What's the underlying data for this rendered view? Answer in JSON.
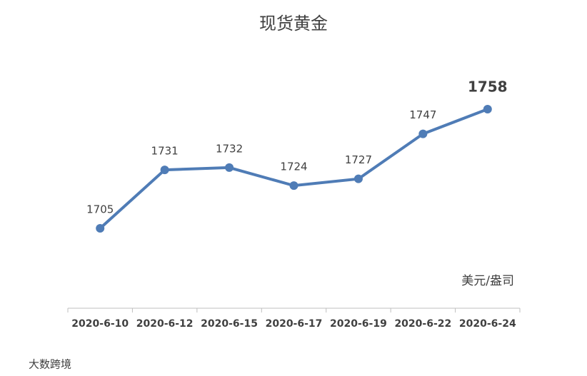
{
  "chart_data": {
    "type": "line",
    "title": "现货黄金",
    "categories": [
      "2020-6-10",
      "2020-6-12",
      "2020-6-15",
      "2020-6-17",
      "2020-6-19",
      "2020-6-22",
      "2020-6-24"
    ],
    "series": [
      {
        "name": "现货黄金",
        "color": "#4f7cb6",
        "values": [
          1705,
          1731,
          1732,
          1724,
          1727,
          1747,
          1758
        ]
      }
    ],
    "unit_label": "美元/盎司",
    "watermark": "大数跨境"
  }
}
